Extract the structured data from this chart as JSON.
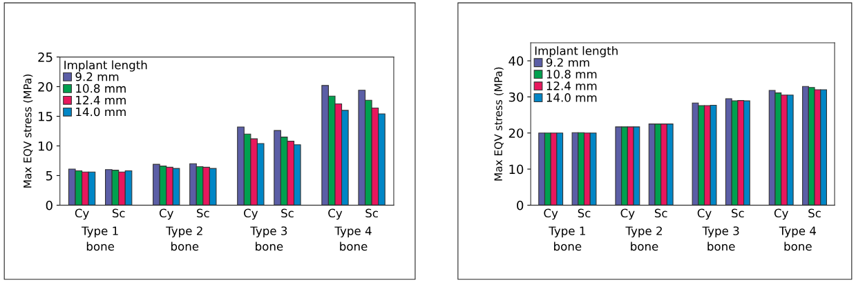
{
  "chart_data": [
    {
      "type": "bar",
      "ylabel": "Max EQV stress (MPa)",
      "legend_title": "Implant length",
      "legend": "top left",
      "grid": false,
      "categories": [
        "Cy",
        "Sc",
        "Cy",
        "Sc",
        "Cy",
        "Sc",
        "Cy",
        "Sc"
      ],
      "annotations": [
        "Type 1\nbone",
        "Type 2\nbone",
        "Type 3\nbone",
        "Type 4\nbone"
      ],
      "ylim": [
        0,
        25
      ],
      "yticks": [
        0,
        5,
        10,
        15,
        20,
        25
      ],
      "series": [
        {
          "name": "9.2 mm",
          "color": "#5b5ea6",
          "values": [
            6.1,
            6.0,
            6.9,
            7.0,
            13.2,
            12.6,
            20.2,
            19.4
          ]
        },
        {
          "name": "10.8 mm",
          "color": "#00a04f",
          "values": [
            5.8,
            5.9,
            6.6,
            6.5,
            12.0,
            11.5,
            18.4,
            17.7
          ]
        },
        {
          "name": "12.4 mm",
          "color": "#e8175d",
          "values": [
            5.6,
            5.6,
            6.4,
            6.4,
            11.2,
            10.8,
            17.1,
            16.4
          ]
        },
        {
          "name": "14.0 mm",
          "color": "#0086c6",
          "values": [
            5.6,
            5.8,
            6.2,
            6.2,
            10.4,
            10.2,
            16.0,
            15.4
          ]
        }
      ]
    },
    {
      "type": "bar",
      "ylabel": "Max EQV stress (MPa)",
      "legend_title": "Implant length",
      "legend": "top left",
      "grid": false,
      "categories": [
        "Cy",
        "Sc",
        "Cy",
        "Sc",
        "Cy",
        "Sc",
        "Cy",
        "Sc"
      ],
      "annotations": [
        "Type 1\nbone",
        "Type 2\nbone",
        "Type 3\nbone",
        "Type 4\nbone"
      ],
      "ylim": [
        0,
        45
      ],
      "yticks": [
        0,
        10,
        20,
        30,
        40
      ],
      "series": [
        {
          "name": "9.2 mm",
          "color": "#5b5ea6",
          "values": [
            20.0,
            20.1,
            21.7,
            22.5,
            28.3,
            29.5,
            31.8,
            32.9
          ]
        },
        {
          "name": "10.8 mm",
          "color": "#00a04f",
          "values": [
            20.0,
            20.1,
            21.7,
            22.5,
            27.6,
            28.9,
            31.1,
            32.6
          ]
        },
        {
          "name": "12.4 mm",
          "color": "#e8175d",
          "values": [
            20.0,
            20.0,
            21.7,
            22.5,
            27.6,
            29.0,
            30.5,
            32.0
          ]
        },
        {
          "name": "14.0 mm",
          "color": "#0086c6",
          "values": [
            20.0,
            20.0,
            21.7,
            22.5,
            27.7,
            28.9,
            30.5,
            32.0
          ]
        }
      ]
    }
  ]
}
